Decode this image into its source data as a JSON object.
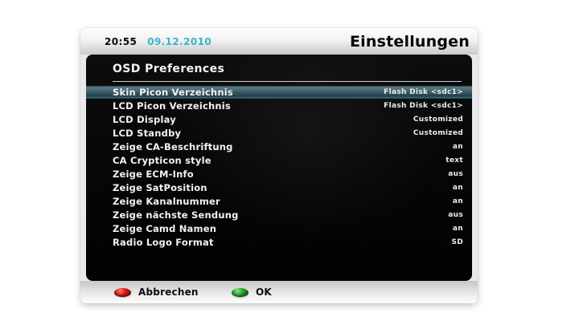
{
  "colors": {
    "date_accent": "#3ab4c8",
    "selected_row_mid": "#41606c",
    "selected_row_edge": "#3f7087",
    "red_button": "#d81414",
    "green_button": "#23a423",
    "panel_background": "#070707"
  },
  "header": {
    "time": "20:55",
    "date": "09.12.2010",
    "title": "Einstellungen"
  },
  "panel": {
    "title": "OSD Preferences"
  },
  "settings": [
    {
      "label": "Skin Picon Verzeichnis",
      "value": "Flash Disk <sdc1>",
      "selected": true
    },
    {
      "label": "LCD Picon Verzeichnis",
      "value": "Flash Disk <sdc1>",
      "selected": false
    },
    {
      "label": "LCD Display",
      "value": "Customized",
      "selected": false
    },
    {
      "label": "LCD Standby",
      "value": "Customized",
      "selected": false
    },
    {
      "label": "Zeige CA-Beschriftung",
      "value": "an",
      "selected": false
    },
    {
      "label": "CA Crypticon style",
      "value": "text",
      "selected": false
    },
    {
      "label": "Zeige ECM-Info",
      "value": "aus",
      "selected": false
    },
    {
      "label": "Zeige SatPosition",
      "value": "an",
      "selected": false
    },
    {
      "label": "Zeige Kanalnummer",
      "value": "an",
      "selected": false
    },
    {
      "label": "Zeige nächste Sendung",
      "value": "aus",
      "selected": false
    },
    {
      "label": "Zeige Camd Namen",
      "value": "an",
      "selected": false
    },
    {
      "label": "Radio Logo Format",
      "value": "SD",
      "selected": false
    }
  ],
  "footer": {
    "cancel_label": "Abbrechen",
    "ok_label": "OK"
  }
}
